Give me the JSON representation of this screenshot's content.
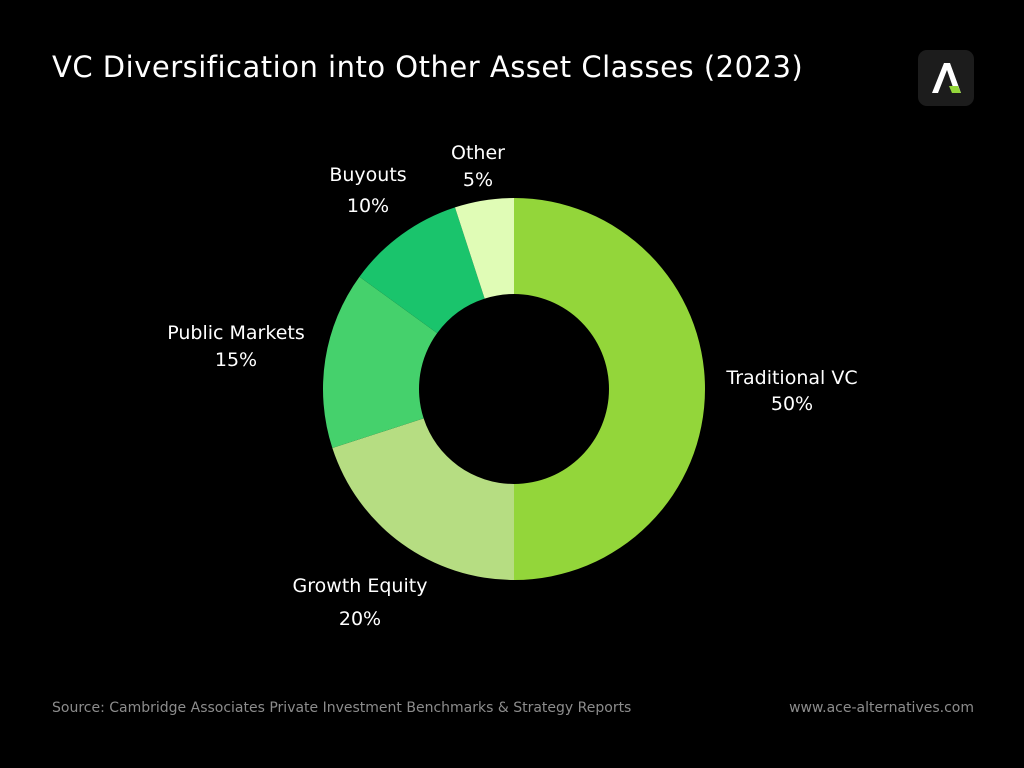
{
  "header": {
    "title": "VC Diversification into Other Asset Classes (2023)",
    "logo_icon": "ace-alternatives-logo-icon"
  },
  "chart_data": {
    "type": "pie",
    "subtype": "donut",
    "title": "VC Diversification into Other Asset Classes (2023)",
    "categories": [
      "Traditional VC",
      "Growth Equity",
      "Public Markets",
      "Buyouts",
      "Other"
    ],
    "values": [
      50,
      20,
      15,
      10,
      5
    ],
    "value_labels": [
      "50%",
      "20%",
      "15%",
      "10%",
      "5%"
    ],
    "colors": [
      "#93d63a",
      "#b6dd82",
      "#45d16c",
      "#1ac46c",
      "#e0fcb6"
    ],
    "unit": "%",
    "legend": "none (direct labels)"
  },
  "footer": {
    "source": "Source: Cambridge Associates Private Investment Benchmarks & Strategy Reports",
    "website": "www.ace-alternatives.com"
  },
  "colors": {
    "background": "#000000",
    "text": "#ffffff",
    "muted_text": "#8c8c8c",
    "logo_accent": "#93d63a"
  }
}
